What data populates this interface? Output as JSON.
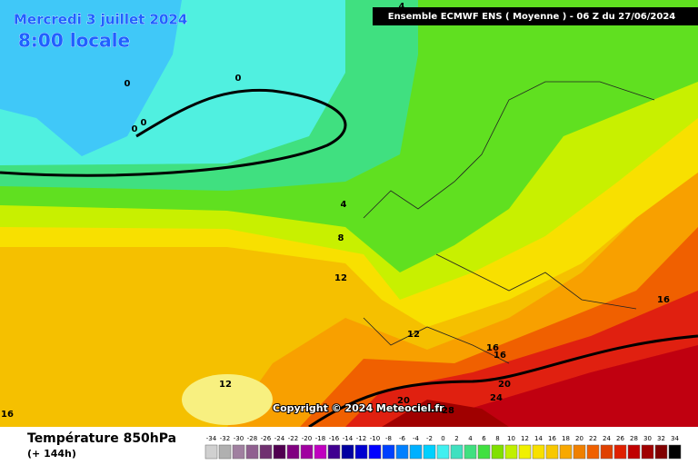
{
  "header": {
    "title": "Mercredi 3 juillet 2024",
    "time": "8:00 locale",
    "model": "Ensemble ECMWF ENS  ( Moyenne )  -  06 Z du 27/06/2024"
  },
  "map": {
    "contour_labels": [
      4,
      0,
      0,
      0,
      0,
      4,
      8,
      12,
      12,
      16,
      16,
      16,
      12,
      20,
      20,
      24,
      28,
      16
    ],
    "copyright": "Copyright © 2024 Meteociel.fr"
  },
  "legend": {
    "title": "Température 850hPa",
    "subtitle": "(+ 144h)",
    "values": [
      -34,
      -32,
      -30,
      -28,
      -26,
      -24,
      -22,
      -20,
      -18,
      -16,
      -14,
      -12,
      -10,
      -8,
      -6,
      -4,
      -2,
      0,
      2,
      4,
      6,
      8,
      10,
      12,
      14,
      16,
      18,
      20,
      22,
      24,
      26,
      28,
      30,
      32,
      34
    ],
    "colors": [
      "#d0d0d0",
      "#b0b0b0",
      "#a080a0",
      "#906090",
      "#703070",
      "#500050",
      "#800080",
      "#a000a0",
      "#c000c0",
      "#400090",
      "#0000a0",
      "#0000d0",
      "#0000ff",
      "#0040ff",
      "#0080ff",
      "#00b0ff",
      "#00d0ff",
      "#40f0f0",
      "#40e0c0",
      "#40e080",
      "#40e040",
      "#80e000",
      "#c0f000",
      "#f0f000",
      "#f8e000",
      "#f8c800",
      "#f8a800",
      "#f08000",
      "#f06000",
      "#e04000",
      "#e02000",
      "#c00000",
      "#a00000",
      "#800000",
      "#000000"
    ]
  }
}
